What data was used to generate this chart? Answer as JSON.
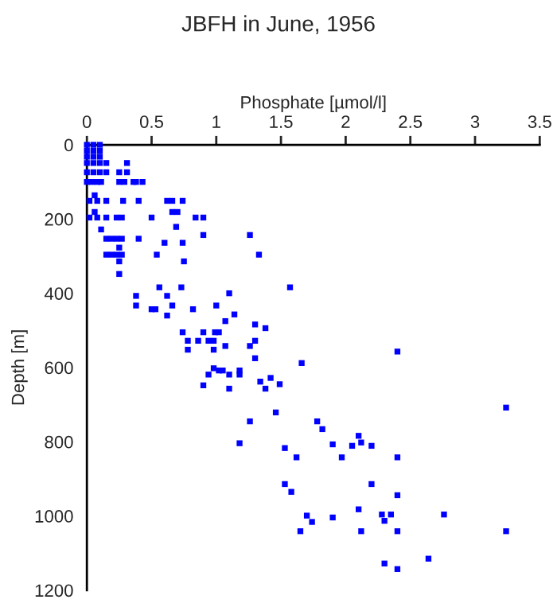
{
  "chart_data": {
    "type": "scatter",
    "title": "JBFH in June, 1956",
    "xlabel": "Phosphate [µmol/l]",
    "ylabel": "Depth [m]",
    "xlim": [
      0,
      3.5
    ],
    "xticks": [
      0,
      0.5,
      1,
      1.5,
      2,
      2.5,
      3,
      3.5
    ],
    "ylim": [
      1200,
      0
    ],
    "yticks": [
      0,
      200,
      400,
      600,
      800,
      1000,
      1200
    ],
    "marker": "square",
    "grid": false,
    "legend": false,
    "series": [
      {
        "color": "#0000ff",
        "x": [
          0,
          0.05,
          0.1,
          0,
          0.05,
          0.1,
          0,
          0.05,
          0.1,
          0,
          0.05,
          0.1,
          0.15,
          0.31,
          0,
          0.05,
          0.1,
          0.15,
          0.25,
          0.31,
          0,
          0.04,
          0.08,
          0.11,
          0.25,
          0.29,
          0.36,
          0.38,
          0.43,
          0.06,
          0.02,
          0.08,
          0.15,
          0.28,
          0.4,
          0.62,
          0.66,
          0.74,
          0.06,
          0.66,
          0.7,
          0.02,
          0.08,
          0.15,
          0.23,
          0.27,
          0.5,
          0.84,
          0.9,
          0.69,
          0.11,
          0.9,
          1.26,
          0.15,
          0.19,
          0.23,
          0.27,
          0.4,
          0.6,
          0.74,
          0.25,
          0.15,
          0.19,
          0.23,
          0.27,
          0.54,
          1.33,
          0.25,
          0.75,
          0.25,
          0.56,
          0.73,
          1.57,
          1.1,
          0.38,
          0.62,
          0.38,
          0.66,
          1.0,
          0.5,
          0.53,
          0.82,
          1.14,
          0.62,
          1.07,
          1.3,
          1.38,
          0.74,
          0.9,
          0.99,
          1.02,
          0.78,
          0.86,
          0.94,
          0.98,
          1.3,
          1.07,
          1.26,
          0.78,
          0.98,
          2.4,
          1.3,
          1.66,
          0.98,
          1.02,
          1.05,
          1.18,
          0.94,
          1.1,
          1.18,
          1.42,
          1.34,
          1.49,
          0.9,
          1.1,
          1.38,
          3.24,
          1.46,
          1.26,
          1.78,
          1.82,
          2.1,
          2.12,
          1.18,
          1.9,
          2.05,
          2.2,
          1.53,
          1.62,
          1.97,
          2.4,
          1.53,
          2.2,
          1.58,
          2.4,
          2.1,
          2.28,
          2.35,
          2.76,
          1.7,
          1.9,
          2.3,
          1.74,
          1.65,
          2.12,
          2.4,
          3.24,
          2.64,
          2.3,
          2.4
        ],
        "values": [
          0,
          0,
          0,
          16,
          16,
          16,
          32,
          32,
          32,
          49,
          49,
          49,
          49,
          49,
          74,
          74,
          74,
          74,
          74,
          74,
          100,
          100,
          100,
          100,
          100,
          100,
          100,
          100,
          100,
          136,
          151,
          151,
          151,
          151,
          151,
          151,
          151,
          151,
          181,
          181,
          181,
          196,
          196,
          196,
          196,
          196,
          196,
          196,
          196,
          221,
          228,
          243,
          243,
          253,
          253,
          253,
          253,
          253,
          264,
          264,
          277,
          296,
          296,
          296,
          296,
          296,
          296,
          314,
          314,
          348,
          384,
          384,
          384,
          400,
          407,
          407,
          433,
          433,
          433,
          443,
          443,
          443,
          457,
          460,
          475,
          484,
          494,
          505,
          505,
          505,
          505,
          528,
          528,
          528,
          528,
          528,
          542,
          542,
          552,
          552,
          557,
          575,
          588,
          602,
          608,
          608,
          608,
          619,
          619,
          619,
          628,
          638,
          645,
          648,
          657,
          657,
          708,
          721,
          745,
          745,
          766,
          784,
          802,
          804,
          807,
          811,
          811,
          817,
          842,
          842,
          842,
          914,
          914,
          935,
          944,
          982,
          996,
          996,
          996,
          999,
          1004,
          1013,
          1016,
          1041,
          1041,
          1041,
          1041,
          1115,
          1128,
          1143
        ]
      }
    ]
  }
}
